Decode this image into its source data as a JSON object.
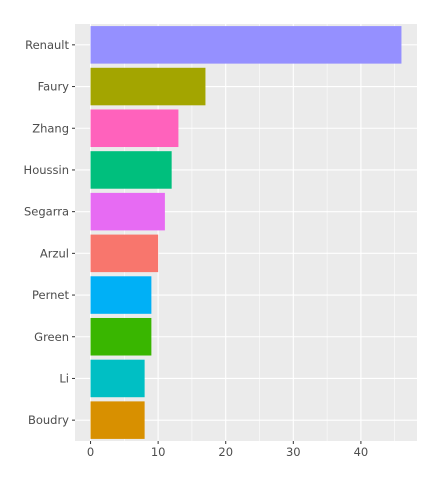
{
  "chart_data": {
    "type": "bar",
    "orientation": "horizontal",
    "title": "",
    "xlabel": "",
    "ylabel": "",
    "categories": [
      "Renault",
      "Faury",
      "Zhang",
      "Houssin",
      "Segarra",
      "Arzul",
      "Pernet",
      "Green",
      "Li",
      "Boudry"
    ],
    "values": [
      46,
      17,
      13,
      12,
      11,
      10,
      9,
      9,
      8,
      8
    ],
    "colors": [
      "#9590FF",
      "#A3A500",
      "#FF62BC",
      "#00BF7D",
      "#E76BF3",
      "#F8766D",
      "#00B0F6",
      "#39B600",
      "#00BFC4",
      "#D89000"
    ],
    "xlim": [
      -2.3,
      48.3
    ],
    "xticks": [
      0,
      10,
      20,
      30,
      40
    ],
    "grid": true,
    "legend": "none"
  },
  "style": {
    "panel_background": "#EBEBEB",
    "grid_color": "#FFFFFF",
    "tick_text_color": "#4D4D4D",
    "tick_mark_color": "#333333"
  }
}
